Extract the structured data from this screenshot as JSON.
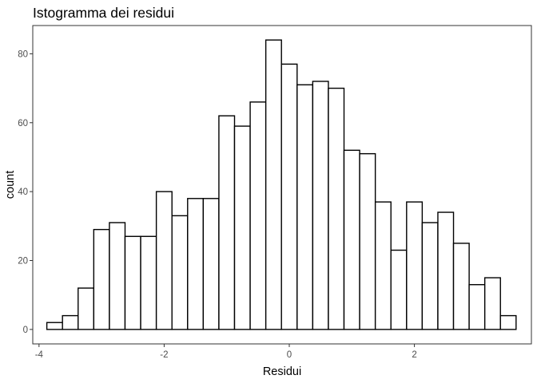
{
  "chart_data": {
    "type": "bar",
    "title": "Istogramma dei residui",
    "xlabel": "Residui",
    "ylabel": "count",
    "bins": [
      {
        "x": -3.75,
        "count": 2
      },
      {
        "x": -3.5,
        "count": 4
      },
      {
        "x": -3.25,
        "count": 12
      },
      {
        "x": -3.0,
        "count": 29
      },
      {
        "x": -2.75,
        "count": 31
      },
      {
        "x": -2.5,
        "count": 27
      },
      {
        "x": -2.25,
        "count": 27
      },
      {
        "x": -2.0,
        "count": 40
      },
      {
        "x": -1.75,
        "count": 33
      },
      {
        "x": -1.5,
        "count": 38
      },
      {
        "x": -1.25,
        "count": 38
      },
      {
        "x": -1.0,
        "count": 62
      },
      {
        "x": -0.75,
        "count": 59
      },
      {
        "x": -0.5,
        "count": 66
      },
      {
        "x": -0.25,
        "count": 84
      },
      {
        "x": 0.0,
        "count": 77
      },
      {
        "x": 0.25,
        "count": 71
      },
      {
        "x": 0.5,
        "count": 72
      },
      {
        "x": 0.75,
        "count": 70
      },
      {
        "x": 1.0,
        "count": 52
      },
      {
        "x": 1.25,
        "count": 51
      },
      {
        "x": 1.5,
        "count": 37
      },
      {
        "x": 1.75,
        "count": 23
      },
      {
        "x": 2.0,
        "count": 37
      },
      {
        "x": 2.25,
        "count": 31
      },
      {
        "x": 2.5,
        "count": 34
      },
      {
        "x": 2.75,
        "count": 25
      },
      {
        "x": 3.0,
        "count": 13
      },
      {
        "x": 3.25,
        "count": 15
      },
      {
        "x": 3.5,
        "count": 4
      }
    ],
    "bin_width": 0.25,
    "xlim": [
      -4.1,
      3.87
    ],
    "ylim": [
      -4.2,
      88.2
    ],
    "x_ticks": [
      {
        "value": -4,
        "label": "-4"
      },
      {
        "value": -2,
        "label": "-2"
      },
      {
        "value": 0,
        "label": "0"
      },
      {
        "value": 2,
        "label": "2"
      }
    ],
    "y_ticks": [
      {
        "value": 0,
        "label": "0"
      },
      {
        "value": 20,
        "label": "20"
      },
      {
        "value": 40,
        "label": "40"
      },
      {
        "value": 60,
        "label": "60"
      },
      {
        "value": 80,
        "label": "80"
      }
    ],
    "grid": false,
    "bar_fill": "#ffffff",
    "bar_outline": "#000000",
    "panel_border": "#333333"
  }
}
